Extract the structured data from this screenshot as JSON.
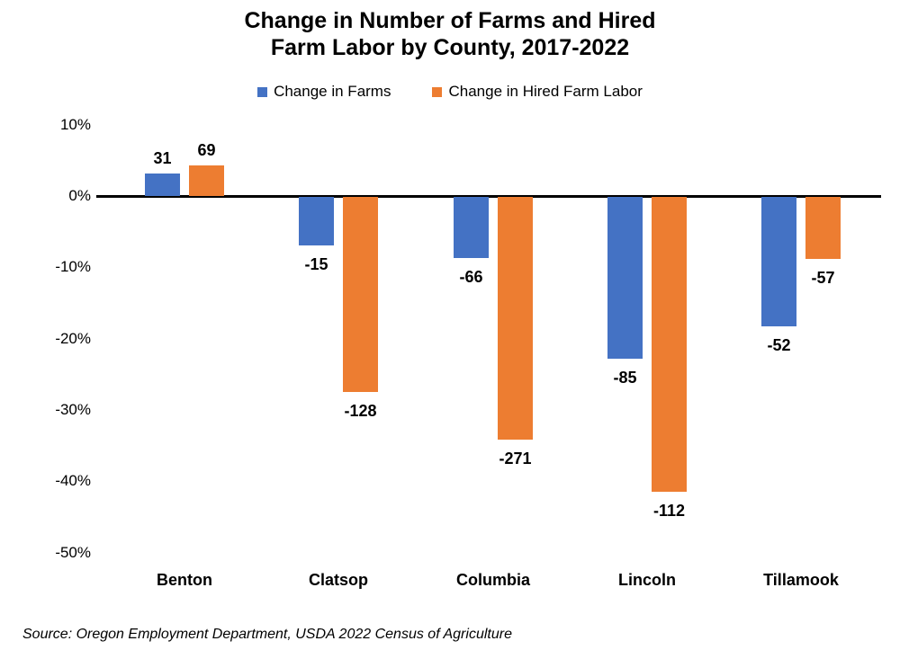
{
  "title": {
    "line1": "Change in Number of Farms and Hired",
    "line2": "Farm Labor by County, 2017-2022"
  },
  "source": "Source: Oregon Employment Department, USDA 2022 Census of Agriculture",
  "chart_data": {
    "type": "bar",
    "title": "Change in Number of Farms and Hired Farm Labor by County, 2017-2022",
    "categories": [
      "Benton",
      "Clatsop",
      "Columbia",
      "Lincoln",
      "Tillamook"
    ],
    "series": [
      {
        "name": "Change in Farms",
        "color": "#4472C4",
        "bar_labels": [
          "31",
          "-15",
          "-66",
          "-85",
          "-52"
        ],
        "values_pct": [
          3.1,
          -6.8,
          -8.6,
          -22.7,
          -18.2
        ]
      },
      {
        "name": "Change in Hired Farm Labor",
        "color": "#ED7D31",
        "bar_labels": [
          "69",
          "-128",
          "-271",
          "-112",
          "-57"
        ],
        "values_pct": [
          4.3,
          -27.4,
          -34.0,
          -41.3,
          -8.7
        ]
      }
    ],
    "y_axis": {
      "unit": "%",
      "range": [
        -50,
        10
      ],
      "ticks": [
        {
          "label": "10%",
          "value": 10
        },
        {
          "label": "0%",
          "value": 0
        },
        {
          "label": "-10%",
          "value": -10
        },
        {
          "label": "-20%",
          "value": -20
        },
        {
          "label": "-30%",
          "value": -30
        },
        {
          "label": "-40%",
          "value": -40
        },
        {
          "label": "-50%",
          "value": -50
        }
      ]
    },
    "legend_position": "top",
    "grid": false
  }
}
